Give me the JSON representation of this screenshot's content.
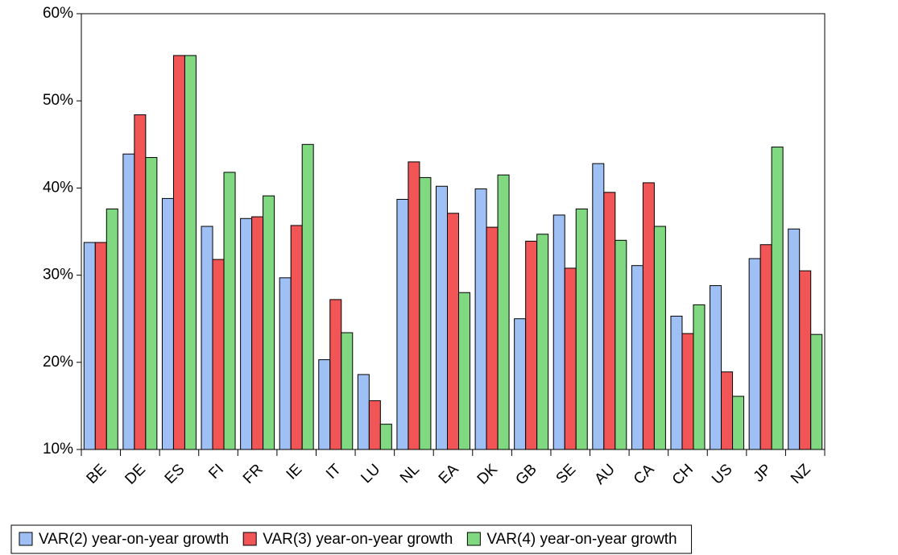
{
  "chart_data": {
    "type": "bar",
    "categories": [
      "BE",
      "DE",
      "ES",
      "FI",
      "FR",
      "IE",
      "IT",
      "LU",
      "NL",
      "EA",
      "DK",
      "GB",
      "SE",
      "AU",
      "CA",
      "CH",
      "US",
      "JP",
      "NZ"
    ],
    "series": [
      {
        "name": "VAR(2) year-on-year growth",
        "color": "#9fc0f5",
        "values": [
          33.75,
          43.9,
          38.8,
          35.6,
          36.5,
          29.7,
          20.3,
          18.6,
          38.7,
          40.2,
          39.9,
          25.0,
          36.9,
          42.8,
          31.1,
          25.3,
          28.8,
          31.9,
          35.3
        ]
      },
      {
        "name": "VAR(3) year-on-year growth",
        "color": "#f25555",
        "values": [
          33.75,
          48.4,
          55.2,
          31.8,
          36.7,
          35.7,
          27.2,
          15.6,
          43.0,
          37.1,
          35.5,
          33.9,
          30.8,
          39.5,
          40.6,
          23.3,
          18.9,
          33.5,
          30.5
        ]
      },
      {
        "name": "VAR(4) year-on-year growth",
        "color": "#80d880",
        "values": [
          37.6,
          43.5,
          55.2,
          41.8,
          39.1,
          45.0,
          23.4,
          12.9,
          41.2,
          28.0,
          41.5,
          34.7,
          37.6,
          34.0,
          35.6,
          26.6,
          16.1,
          44.7,
          23.2
        ]
      }
    ],
    "ylim": [
      10,
      60
    ],
    "yticks": [
      {
        "value": 10,
        "label": "10%"
      },
      {
        "value": 20,
        "label": "20%"
      },
      {
        "value": 30,
        "label": "30%"
      },
      {
        "value": 40,
        "label": "40%"
      },
      {
        "value": 50,
        "label": "50%"
      },
      {
        "value": 60,
        "label": "60%"
      }
    ],
    "legend": "bottom"
  }
}
